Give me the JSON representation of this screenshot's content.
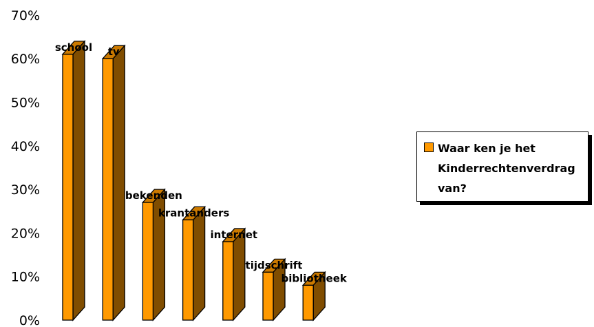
{
  "chart_data": {
    "type": "bar",
    "categories": [
      "school",
      "tv",
      "bekenden",
      "krantanders",
      "internet",
      "tijdschrift",
      "bibliotheek"
    ],
    "series": [
      {
        "name": "Waar ken je het Kinderrechtenverdrag van?",
        "values": [
          61,
          60,
          27,
          23,
          18,
          11,
          8
        ]
      }
    ],
    "data_labels": [
      "school",
      "tv",
      "bekenden",
      "krantanders",
      "internet",
      "tijdschrift",
      "bibliotheek"
    ],
    "y_ticks": [
      "0%",
      "10%",
      "20%",
      "30%",
      "40%",
      "50%",
      "60%",
      "70%"
    ],
    "ylim": [
      0,
      70
    ],
    "legend_position": "right",
    "grid": false,
    "style": "3d-bar",
    "colors": {
      "front": "#FF9900",
      "side": "#804D00",
      "top": "#CC7A00"
    }
  }
}
